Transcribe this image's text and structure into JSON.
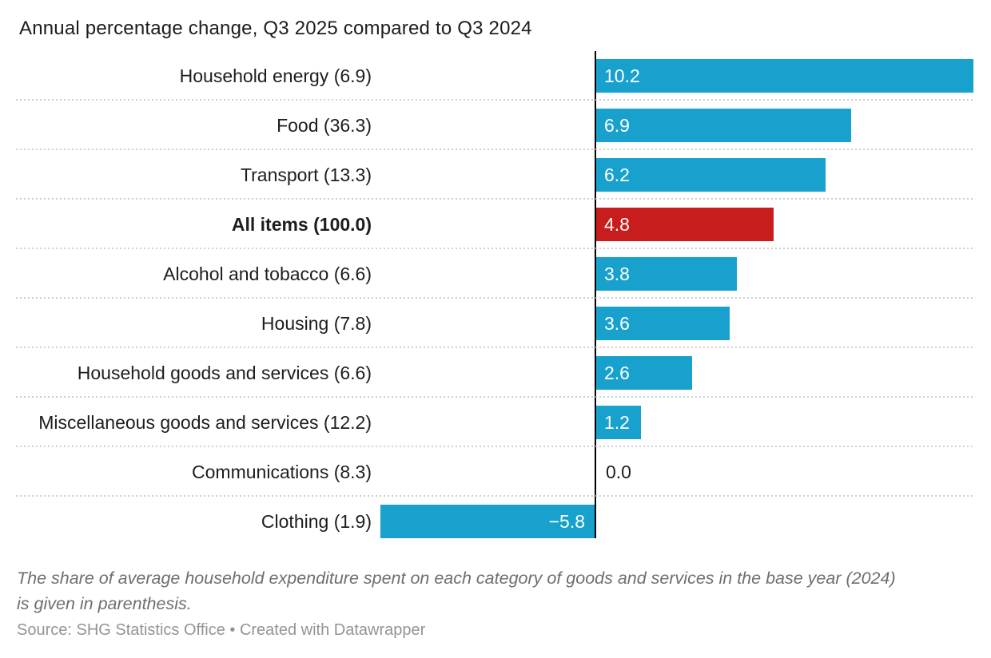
{
  "title": "Annual percentage change, Q3 2025 compared to Q3 2024",
  "note": "The share of average household expenditure spent on each category of goods and services in the base year (2024)\nis given in parenthesis.",
  "source": "Source: SHG Statistics Office • Created with Datawrapper",
  "chart_data": {
    "type": "bar",
    "orientation": "horizontal",
    "title": "Annual percentage change, Q3 2025 compared to Q3 2024",
    "xlim": [
      -6.1,
      10.2
    ],
    "baseline_value": 0,
    "grid": "dotted-row-separators",
    "colors": {
      "bar_default": "#18a1cd",
      "bar_highlight": "#c71e1d",
      "axis": "#000000",
      "label_text": "#1d1d1d",
      "value_text_on_bar": "#ffffff"
    },
    "highlight_category": "All items (100.0)",
    "rows": [
      {
        "label": "Household energy (6.9)",
        "share": 6.9,
        "value": 10.2,
        "display": "10.2",
        "highlight": false,
        "bold": false
      },
      {
        "label": "Food (36.3)",
        "share": 36.3,
        "value": 6.9,
        "display": "6.9",
        "highlight": false,
        "bold": false
      },
      {
        "label": "Transport (13.3)",
        "share": 13.3,
        "value": 6.2,
        "display": "6.2",
        "highlight": false,
        "bold": false
      },
      {
        "label": "All items (100.0)",
        "share": 100.0,
        "value": 4.8,
        "display": "4.8",
        "highlight": true,
        "bold": true
      },
      {
        "label": "Alcohol and tobacco (6.6)",
        "share": 6.6,
        "value": 3.8,
        "display": "3.8",
        "highlight": false,
        "bold": false
      },
      {
        "label": "Housing (7.8)",
        "share": 7.8,
        "value": 3.6,
        "display": "3.6",
        "highlight": false,
        "bold": false
      },
      {
        "label": "Household goods and services (6.6)",
        "share": 6.6,
        "value": 2.6,
        "display": "2.6",
        "highlight": false,
        "bold": false
      },
      {
        "label": "Miscellaneous goods and services (12.2)",
        "share": 12.2,
        "value": 1.2,
        "display": "1.2",
        "highlight": false,
        "bold": false
      },
      {
        "label": "Communications (8.3)",
        "share": 8.3,
        "value": 0.0,
        "display": "0.0",
        "highlight": false,
        "bold": false
      },
      {
        "label": "Clothing (1.9)",
        "share": 1.9,
        "value": -5.8,
        "display": "−5.8",
        "highlight": false,
        "bold": false
      }
    ]
  }
}
